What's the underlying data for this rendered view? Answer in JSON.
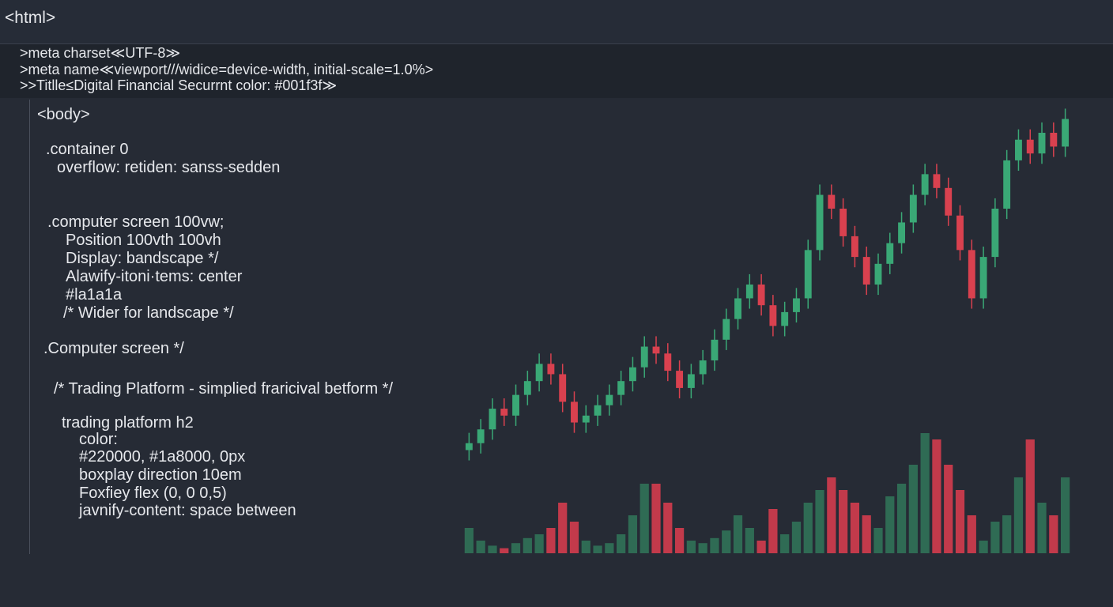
{
  "tab_title": "<html>",
  "head_lines": [
    ">meta charset≪UTF-8≫",
    ">meta name≪viewport///widice=device-width, initial-scale=1.0%>",
    ">>Titlle≤Digital Financial Securrnt color: #001f3f≫"
  ],
  "code_lines": [
    "<body>",
    ".container 0",
    "overflow: retiden: sanss-sedden",
    ".computer screen 100vw;",
    "Position  100vth 100vh",
    "Display: bandscape */",
    "Alawify-itoni·tems: center",
    "#la1a1a",
    "/* Wider for landscape */",
    ".Computer screen */",
    "/* Trading Platform - simplied fraricival betform */",
    "trading platform h2",
    "color:",
    "#220000, #1a8000, 0px",
    "boxplay direction 10em",
    "Foxfiey flex  (0, 0 0,5)",
    "javnify-content: space between"
  ],
  "chart_data": {
    "type": "candlestick",
    "open": [
      2,
      4,
      8,
      14,
      12,
      18,
      22,
      27,
      24,
      16,
      10,
      12,
      15,
      18,
      22,
      26,
      32,
      30,
      25,
      20,
      24,
      28,
      34,
      40,
      46,
      50,
      44,
      38,
      42,
      46,
      60,
      76,
      72,
      64,
      58,
      50,
      56,
      62,
      68,
      76,
      82,
      78,
      70,
      60,
      46,
      58,
      72,
      86,
      92,
      88,
      94,
      90
    ],
    "high": [
      7,
      11,
      17,
      17,
      21,
      25,
      30,
      30,
      27,
      19,
      15,
      18,
      21,
      25,
      29,
      35,
      35,
      33,
      28,
      27,
      31,
      37,
      43,
      49,
      53,
      53,
      47,
      45,
      49,
      63,
      79,
      79,
      75,
      67,
      61,
      59,
      65,
      71,
      79,
      85,
      85,
      81,
      73,
      63,
      61,
      75,
      89,
      95,
      95,
      97,
      97,
      101
    ],
    "low": [
      -1,
      1,
      5,
      9,
      9,
      15,
      19,
      21,
      13,
      7,
      7,
      9,
      12,
      15,
      19,
      23,
      27,
      22,
      17,
      17,
      21,
      25,
      31,
      37,
      43,
      41,
      35,
      35,
      39,
      43,
      57,
      69,
      61,
      55,
      47,
      47,
      53,
      59,
      65,
      73,
      75,
      67,
      57,
      43,
      43,
      55,
      69,
      83,
      85,
      85,
      87,
      87
    ],
    "close": [
      4,
      8,
      14,
      12,
      18,
      22,
      27,
      24,
      16,
      10,
      12,
      15,
      18,
      22,
      26,
      32,
      30,
      25,
      20,
      24,
      28,
      34,
      40,
      46,
      50,
      44,
      38,
      42,
      46,
      60,
      76,
      72,
      64,
      58,
      50,
      56,
      62,
      68,
      76,
      82,
      78,
      70,
      60,
      46,
      58,
      72,
      86,
      92,
      88,
      94,
      90,
      98
    ],
    "volume": [
      20,
      10,
      6,
      4,
      8,
      12,
      15,
      20,
      40,
      25,
      10,
      6,
      8,
      15,
      30,
      55,
      55,
      40,
      20,
      10,
      8,
      12,
      18,
      30,
      20,
      10,
      35,
      15,
      25,
      40,
      50,
      60,
      50,
      40,
      30,
      20,
      45,
      55,
      70,
      95,
      90,
      70,
      50,
      30,
      10,
      25,
      30,
      60,
      90,
      40,
      30,
      60
    ],
    "ylim": [
      -5,
      105
    ],
    "volume_lim": [
      0,
      100
    ],
    "up_color": "#3aa876",
    "down_color": "#d9414f",
    "volume_up_color": "#2f6b54",
    "volume_down_color": "#c23a4b"
  }
}
